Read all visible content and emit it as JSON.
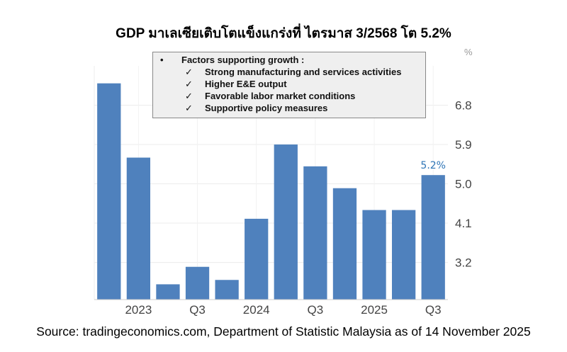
{
  "title": "GDP มาเลเซียเติบโตแข็งแกร่งที่ ไตรมาส 3/2568 โต 5.2%",
  "source": "Source: tradingeconomics.com, Department of Statistic Malaysia as of 14 November 2025",
  "annotation_box": {
    "bullet": "•",
    "heading": "Factors supporting growth :",
    "check": "✓",
    "items": [
      "Strong manufacturing and services activities",
      "Higher E&E output",
      "Favorable labor market conditions",
      "Supportive policy measures"
    ]
  },
  "chart_data": {
    "type": "bar",
    "title": "",
    "unit_label": "%",
    "categories": [
      "2022 Q4",
      "2023 Q1",
      "2023 Q2",
      "2023 Q3",
      "2023 Q4",
      "2024 Q1",
      "2024 Q2",
      "2024 Q3",
      "2024 Q4",
      "2025 Q1",
      "2025 Q2",
      "2025 Q3"
    ],
    "values": [
      7.3,
      5.6,
      2.7,
      3.1,
      2.8,
      4.2,
      5.9,
      5.4,
      4.9,
      4.4,
      4.4,
      5.2
    ],
    "x_tick_labels": [
      {
        "index": 1,
        "label": "2023"
      },
      {
        "index": 3,
        "label": "Q3"
      },
      {
        "index": 5,
        "label": "2024"
      },
      {
        "index": 7,
        "label": "Q3"
      },
      {
        "index": 9,
        "label": "2025"
      },
      {
        "index": 11,
        "label": "Q3"
      }
    ],
    "y_ticks": [
      3.2,
      4.1,
      5.0,
      5.9,
      6.8
    ],
    "y_tick_labels": [
      "3.2",
      "4.1",
      "5.0",
      "5.9",
      "6.8"
    ],
    "ylim": [
      2.35,
      7.7
    ],
    "y_axis_side": "right",
    "grid": true,
    "data_label": {
      "index": 11,
      "text": "5.2%",
      "color": "#2e75b6"
    },
    "bar_color": "#4f81bd"
  }
}
